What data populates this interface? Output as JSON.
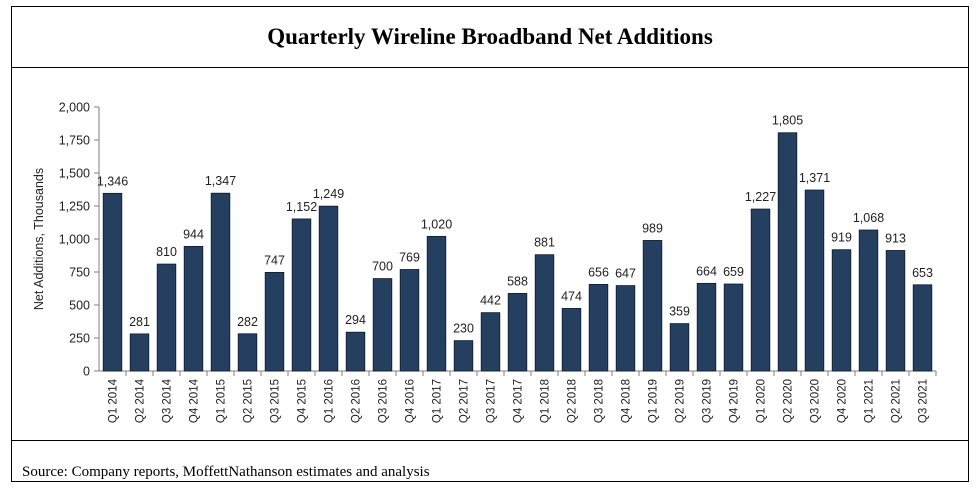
{
  "title": "Quarterly Wireline Broadband Net Additions",
  "source": "Source: Company reports, MoffettNathanson estimates and analysis",
  "colors": {
    "bar": "#243F60",
    "bar_edge": "#0d1b2e",
    "axis": "#7f7f7f",
    "text": "#222222"
  },
  "chart_data": {
    "type": "bar",
    "title": "Quarterly Wireline Broadband Net Additions",
    "xlabel": "",
    "ylabel": "Net Additions, Thousands",
    "ylim": [
      0,
      2000
    ],
    "yticks": [
      0,
      250,
      500,
      750,
      1000,
      1250,
      1500,
      1750,
      2000
    ],
    "ytick_labels": [
      "0",
      "250",
      "500",
      "750",
      "1,000",
      "1,250",
      "1,500",
      "1,750",
      "2,000"
    ],
    "grid": false,
    "legend": false,
    "categories": [
      "Q1 2014",
      "Q2 2014",
      "Q3 2014",
      "Q4 2014",
      "Q1 2015",
      "Q2 2015",
      "Q3 2015",
      "Q4 2015",
      "Q1 2016",
      "Q2 2016",
      "Q3 2016",
      "Q4 2016",
      "Q1 2017",
      "Q2 2017",
      "Q3 2017",
      "Q4 2017",
      "Q1 2018",
      "Q2 2018",
      "Q3 2018",
      "Q4 2018",
      "Q1 2019",
      "Q2 2019",
      "Q3 2019",
      "Q4 2019",
      "Q1 2020",
      "Q2 2020",
      "Q3 2020",
      "Q4 2020",
      "Q1 2021",
      "Q2 2021",
      "Q3 2021"
    ],
    "values": [
      1346,
      281,
      810,
      944,
      1347,
      282,
      747,
      1152,
      1249,
      294,
      700,
      769,
      1020,
      230,
      442,
      588,
      881,
      474,
      656,
      647,
      989,
      359,
      664,
      659,
      1227,
      1805,
      1371,
      919,
      1068,
      913,
      653
    ],
    "data_labels": [
      "1,346",
      "281",
      "810",
      "944",
      "1,347",
      "282",
      "747",
      "1,152",
      "1,249",
      "294",
      "700",
      "769",
      "1,020",
      "230",
      "442",
      "588",
      "881",
      "474",
      "656",
      "647",
      "989",
      "359",
      "664",
      "659",
      "1,227",
      "1,805",
      "1,371",
      "919",
      "1,068",
      "913",
      "653"
    ]
  }
}
